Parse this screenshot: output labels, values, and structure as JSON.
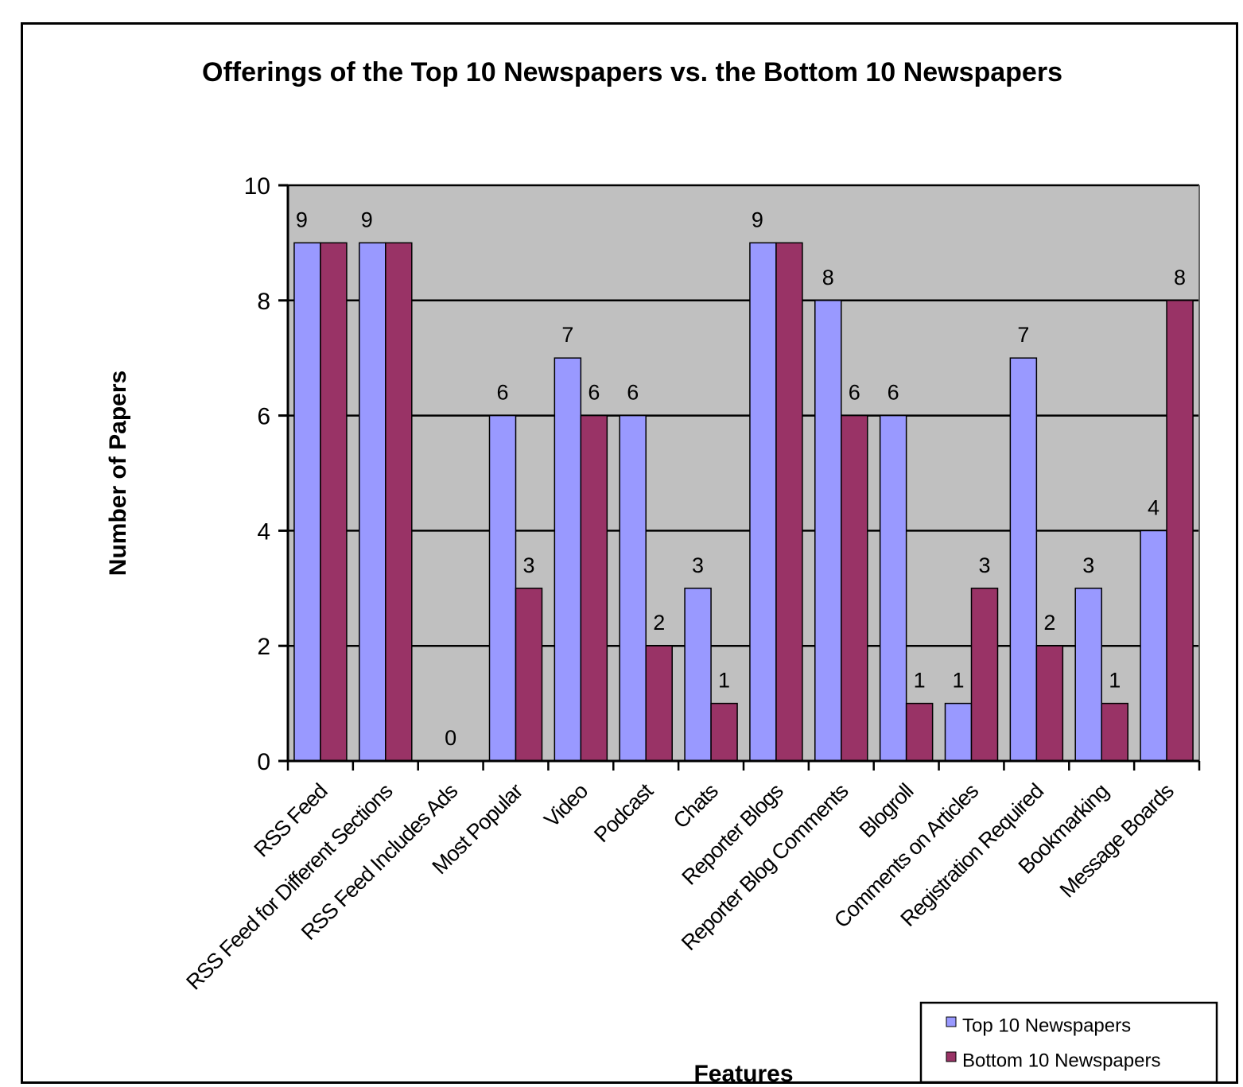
{
  "chart_data": {
    "type": "bar",
    "title": "Offerings of the Top 10 Newspapers vs. the Bottom 10 Newspapers",
    "xlabel": "Features",
    "ylabel": "Number of Papers",
    "ylim": [
      0,
      10
    ],
    "yticks": [
      0,
      2,
      4,
      6,
      8,
      10
    ],
    "grid": true,
    "legend_position": "bottom-right",
    "categories": [
      "RSS Feed",
      "RSS Feed for Different Sections",
      "RSS Feed Includes Ads",
      "Most Popular",
      "Video",
      "Podcast",
      "Chats",
      "Reporter Blogs",
      "Reporter Blog Comments",
      "Blogroll",
      "Comments on Articles",
      "Registration Required",
      "Bookmarking",
      "Message Boards"
    ],
    "series": [
      {
        "name": "Top 10 Newspapers",
        "color": "#9999ff",
        "values": [
          9,
          9,
          0,
          6,
          7,
          6,
          3,
          9,
          8,
          6,
          1,
          7,
          3,
          4
        ]
      },
      {
        "name": "Bottom 10 Newspapers",
        "color": "#993366",
        "values": [
          9,
          9,
          0,
          3,
          6,
          2,
          1,
          9,
          6,
          1,
          3,
          2,
          1,
          8
        ]
      }
    ],
    "data_labels": [
      "9",
      "9",
      "0",
      "6",
      "3",
      "7",
      "6",
      "6",
      "2",
      "3",
      "1",
      "9",
      "8",
      "6",
      "6",
      "1",
      "1",
      "3",
      "7",
      "2",
      "3",
      "1",
      "4",
      "8"
    ],
    "plot_background": "#c0c0c0"
  }
}
